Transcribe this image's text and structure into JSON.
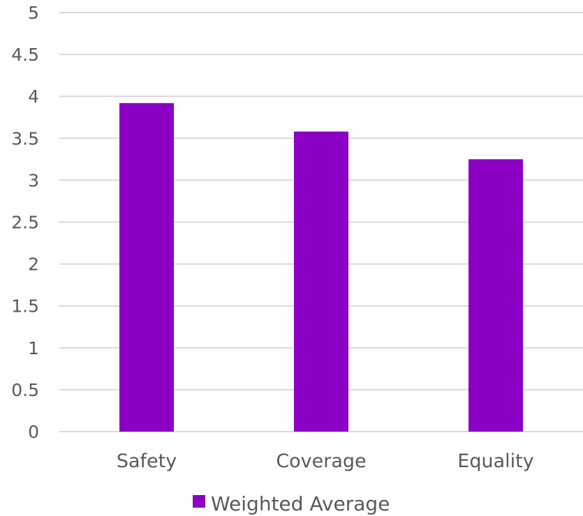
{
  "chart_data": {
    "type": "bar",
    "categories": [
      "Safety",
      "Coverage",
      "Equality"
    ],
    "series": [
      {
        "name": "Weighted Average",
        "values": [
          3.92,
          3.58,
          3.25
        ],
        "color": "#8B00C4"
      }
    ],
    "ylim": [
      0,
      5
    ],
    "yticks": [
      "0",
      "0.5",
      "1",
      "1.5",
      "2",
      "2.5",
      "3",
      "3.5",
      "4",
      "4.5",
      "5"
    ],
    "ytick_values": [
      0,
      0.5,
      1,
      1.5,
      2,
      2.5,
      3,
      3.5,
      4,
      4.5,
      5
    ],
    "grid": true,
    "legend": "bottom",
    "gridline_color": "#d9d9d9",
    "text_color": "#595959"
  }
}
